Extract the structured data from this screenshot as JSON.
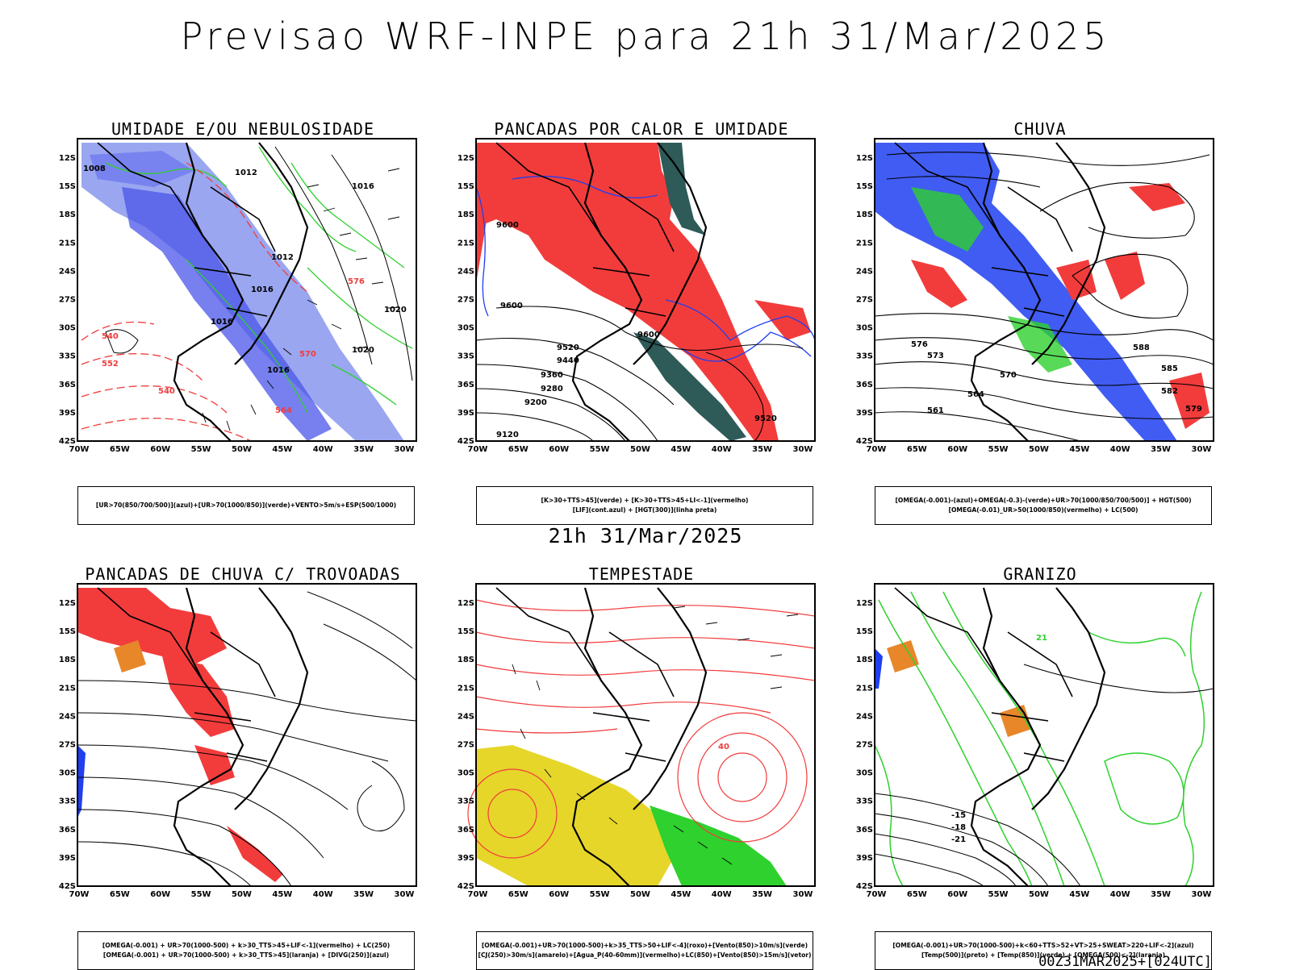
{
  "header": {
    "title": "Previsao WRF-INPE  para 21h 31/Mar/2025"
  },
  "middle_date": "21h 31/Mar/2025",
  "footer": "00Z31MAR2025+[024UTC]",
  "axes": {
    "lat_labels": [
      "12S",
      "15S",
      "18S",
      "21S",
      "24S",
      "27S",
      "30S",
      "33S",
      "36S",
      "39S",
      "42S"
    ],
    "lon_labels": [
      "70W",
      "65W",
      "60W",
      "55W",
      "50W",
      "45W",
      "40W",
      "35W",
      "30W"
    ]
  },
  "colors": {
    "red": "#f23c3c",
    "blue": "#1f3ff0",
    "green": "#2ed12e",
    "lightblue": "#9aa6f0",
    "yellow": "#e6d62a",
    "darkteal": "#2e5a58",
    "orange": "#e8862a"
  },
  "panels": [
    {
      "title": "UMIDADE E/OU NEBULOSIDADE",
      "legend": [
        "[UR>70(850/700/500)](azul)+[UR>70(1000/850)](verde)+VENTO>5m/s+ESP(500/1000)"
      ],
      "labels": [
        "1008",
        "1012",
        "1016",
        "1012",
        "1016",
        "1020",
        "1020",
        "1016",
        "1016",
        "570",
        "552",
        "540",
        "540",
        "564",
        "576"
      ]
    },
    {
      "title": "PANCADAS POR CALOR E UMIDADE",
      "legend": [
        "[K>30+TTS>45](verde) + [K>30+TTS>45+LI<-1](vermelho)",
        "[LIF](cont.azul) + [HGT(300)](linha preta)"
      ],
      "labels": [
        "9520",
        "9440",
        "9360",
        "9280",
        "9200",
        "9120",
        "9600",
        "9600",
        "9520",
        "9600"
      ]
    },
    {
      "title": "CHUVA",
      "legend": [
        "[OMEGA(-0.001)-(azul)+OMEGA(-0.3)-(verde)+UR>70(1000/850/700/500)] + HGT(500)",
        "[OMEGA(-0.01)_UR>50(1000/850)(vermelho) + LC(500)"
      ],
      "labels": [
        "576",
        "573",
        "570",
        "564",
        "561",
        "588",
        "585",
        "582",
        "579"
      ]
    },
    {
      "title": "PANCADAS DE CHUVA C/ TROVOADAS",
      "legend": [
        "[OMEGA(-0.001) + UR>70(1000-500) + k>30_TTS>45+LIF<-1](vermelho) + LC(250)",
        "[OMEGA(-0.001) + UR>70(1000-500) + k>30_TTS>45](laranja) + [DIVG(250)](azul)"
      ],
      "labels": []
    },
    {
      "title": "TEMPESTADE",
      "legend": [
        "[OMEGA(-0.001)+UR>70(1000-500)+k>35_TTS>50+LIF<-4](roxo)+[Vento(850)>10m/s](verde)",
        "[CJ(250)>30m/s](amarelo)+[Agua_P(40-60mm)](vermelho)+LC(850)+[Vento(850)>15m/s](vetor)"
      ],
      "labels": [
        "40"
      ]
    },
    {
      "title": "GRANIZO",
      "legend": [
        "[OMEGA(-0.001)+UR>70(1000-500)+k<60+TTS>52+VT>25+SWEAT>220+LIF<-2](azul)",
        "[Temp(500)](preto) + [Temp(850)](verde) + [OMEGA(500)<-2](laranja)"
      ],
      "labels": [
        "-15",
        "-18",
        "-21",
        "21"
      ]
    }
  ]
}
